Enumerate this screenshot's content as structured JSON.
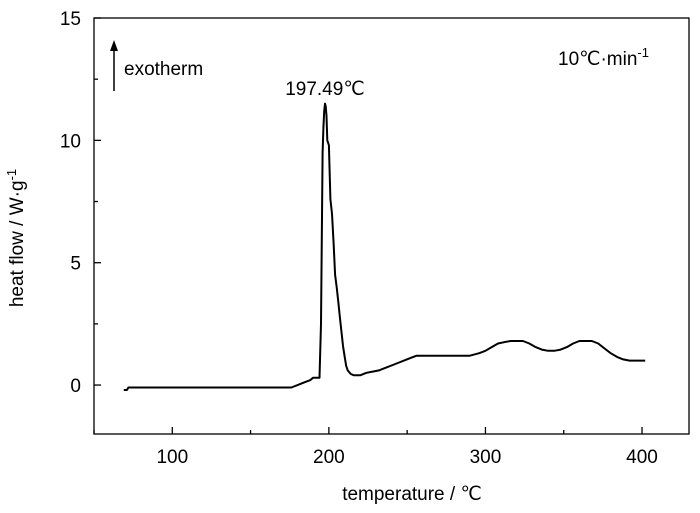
{
  "chart_data": {
    "type": "line",
    "title": "",
    "xlabel": "temperature / ℃",
    "ylabel": "heat flow / W·g",
    "ylabel_sup": "-1",
    "xlim": [
      50,
      430
    ],
    "ylim": [
      -2,
      15
    ],
    "xticks": [
      100,
      200,
      300,
      400
    ],
    "yticks": [
      0,
      5,
      10,
      15
    ],
    "grid": false,
    "legend": "none",
    "annotations": {
      "exotherm": "exotherm",
      "rate": "10℃·min",
      "rate_sup": "-1",
      "peak_label": "197.49℃",
      "peak_x": 197.49
    },
    "series": [
      {
        "x": [
          69,
          71,
          72,
          100,
          150,
          176,
          180,
          184,
          188,
          190,
          192,
          194,
          195,
          196,
          196.5,
          197,
          197.5,
          198,
          198.5,
          199,
          200,
          201,
          202,
          203,
          204,
          205,
          206,
          207,
          208,
          209,
          210,
          211,
          212,
          214,
          216,
          220,
          224,
          228,
          232,
          236,
          240,
          244,
          248,
          252,
          256,
          260,
          270,
          280,
          290,
          296,
          300,
          304,
          308,
          312,
          316,
          320,
          324,
          328,
          332,
          336,
          340,
          344,
          348,
          352,
          356,
          360,
          364,
          368,
          372,
          376,
          380,
          384,
          388,
          392,
          396,
          402
        ],
        "y": [
          -0.2,
          -0.2,
          -0.1,
          -0.1,
          -0.1,
          -0.1,
          0.0,
          0.1,
          0.2,
          0.3,
          0.3,
          0.3,
          2.5,
          9.5,
          10.5,
          11.2,
          11.5,
          11.4,
          11.0,
          10.0,
          9.8,
          7.6,
          7.0,
          5.8,
          4.5,
          4.0,
          3.4,
          2.8,
          2.2,
          1.6,
          1.2,
          0.8,
          0.6,
          0.45,
          0.4,
          0.4,
          0.5,
          0.55,
          0.6,
          0.7,
          0.8,
          0.9,
          1.0,
          1.1,
          1.2,
          1.2,
          1.2,
          1.2,
          1.2,
          1.3,
          1.4,
          1.55,
          1.7,
          1.75,
          1.8,
          1.8,
          1.8,
          1.7,
          1.55,
          1.45,
          1.4,
          1.4,
          1.45,
          1.55,
          1.7,
          1.8,
          1.8,
          1.8,
          1.7,
          1.5,
          1.3,
          1.15,
          1.05,
          1.0,
          1.0,
          1.0
        ]
      }
    ]
  }
}
